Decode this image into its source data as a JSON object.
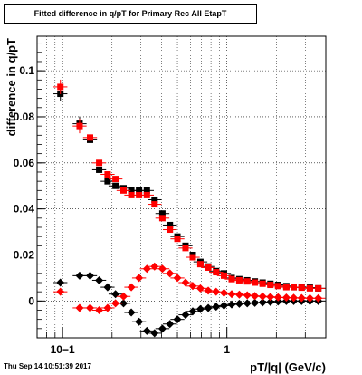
{
  "page": {
    "timestamp": "Thu Sep 14 10:51:39 2017"
  },
  "chart_data": {
    "type": "scatter",
    "title": "Fitted difference in q/pT for Primary Rec All EtapT",
    "xlabel": "pT/|q| (GeV/c)",
    "ylabel": "difference in q/pT",
    "xscale": "log",
    "xlim": [
      0.07,
      4.0
    ],
    "ylim": [
      -0.016,
      0.115
    ],
    "xticks": [
      {
        "value": 0.1,
        "label": "10−1"
      },
      {
        "value": 1,
        "label": "1"
      }
    ],
    "yticks": [
      {
        "value": 0,
        "label": "0"
      },
      {
        "value": 0.02,
        "label": "0.02"
      },
      {
        "value": 0.04,
        "label": "0.04"
      },
      {
        "value": 0.06,
        "label": "0.06"
      },
      {
        "value": 0.08,
        "label": "0.08"
      },
      {
        "value": 0.1,
        "label": "0.1"
      }
    ],
    "grid": true,
    "legend": "none",
    "series": [
      {
        "marker": "square",
        "color": "#000000",
        "xerr": true,
        "yerr": true,
        "x": [
          0.097,
          0.127,
          0.147,
          0.167,
          0.188,
          0.21,
          0.235,
          0.262,
          0.292,
          0.326,
          0.363,
          0.405,
          0.45,
          0.5,
          0.56,
          0.62,
          0.69,
          0.77,
          0.86,
          0.96,
          1.07,
          1.19,
          1.33,
          1.48,
          1.65,
          1.84,
          2.05,
          2.3,
          2.55,
          2.85,
          3.2,
          3.6
        ],
        "y": [
          0.09,
          0.077,
          0.07,
          0.057,
          0.052,
          0.05,
          0.049,
          0.048,
          0.048,
          0.048,
          0.044,
          0.038,
          0.033,
          0.028,
          0.024,
          0.02,
          0.017,
          0.015,
          0.013,
          0.012,
          0.01,
          0.0095,
          0.009,
          0.0085,
          0.008,
          0.0075,
          0.007,
          0.0065,
          0.006,
          0.006,
          0.0058,
          0.0055
        ]
      },
      {
        "marker": "square",
        "color": "#ff0000",
        "xerr": true,
        "yerr": true,
        "x": [
          0.097,
          0.127,
          0.147,
          0.167,
          0.188,
          0.21,
          0.235,
          0.262,
          0.292,
          0.326,
          0.363,
          0.405,
          0.45,
          0.5,
          0.56,
          0.62,
          0.69,
          0.77,
          0.86,
          0.96,
          1.07,
          1.19,
          1.33,
          1.48,
          1.65,
          1.84,
          2.05,
          2.3,
          2.55,
          2.85,
          3.2,
          3.6
        ],
        "y": [
          0.093,
          0.076,
          0.071,
          0.06,
          0.055,
          0.053,
          0.048,
          0.046,
          0.046,
          0.046,
          0.042,
          0.036,
          0.031,
          0.027,
          0.023,
          0.019,
          0.016,
          0.0145,
          0.0125,
          0.011,
          0.0095,
          0.009,
          0.0085,
          0.008,
          0.0075,
          0.007,
          0.0065,
          0.006,
          0.006,
          0.0058,
          0.0055,
          0.0055
        ]
      },
      {
        "marker": "diamond",
        "color": "#000000",
        "xerr": true,
        "yerr": false,
        "x": [
          0.097,
          0.127,
          0.147,
          0.167,
          0.188,
          0.21,
          0.235,
          0.262,
          0.292,
          0.326,
          0.363,
          0.405,
          0.45,
          0.5,
          0.56,
          0.62,
          0.69,
          0.77,
          0.86,
          0.96,
          1.07,
          1.19,
          1.33,
          1.48,
          1.65,
          1.84,
          2.05,
          2.3,
          2.55,
          2.85,
          3.2,
          3.6
        ],
        "y": [
          0.008,
          0.011,
          0.011,
          0.009,
          0.006,
          0.003,
          -0.001,
          -0.005,
          -0.009,
          -0.013,
          -0.014,
          -0.012,
          -0.01,
          -0.008,
          -0.006,
          -0.0045,
          -0.0035,
          -0.003,
          -0.0025,
          -0.002,
          -0.0015,
          -0.0012,
          -0.001,
          -0.0008,
          -0.0006,
          -0.0004,
          -0.0002,
          0.0,
          0.0,
          0.0,
          0.0,
          0.0
        ]
      },
      {
        "marker": "diamond",
        "color": "#ff0000",
        "xerr": true,
        "yerr": false,
        "x": [
          0.097,
          0.127,
          0.147,
          0.167,
          0.188,
          0.21,
          0.235,
          0.262,
          0.292,
          0.326,
          0.363,
          0.405,
          0.45,
          0.5,
          0.56,
          0.62,
          0.69,
          0.77,
          0.86,
          0.96,
          1.07,
          1.19,
          1.33,
          1.48,
          1.65,
          1.84,
          2.05,
          2.3,
          2.55,
          2.85,
          3.2,
          3.6
        ],
        "y": [
          0.004,
          -0.003,
          -0.003,
          -0.004,
          -0.003,
          -0.001,
          0.002,
          0.006,
          0.01,
          0.014,
          0.015,
          0.014,
          0.012,
          0.01,
          0.008,
          0.0065,
          0.0055,
          0.0045,
          0.004,
          0.0035,
          0.003,
          0.0028,
          0.0025,
          0.0022,
          0.002,
          0.0018,
          0.0016,
          0.0015,
          0.0014,
          0.0013,
          0.0012,
          0.0012
        ]
      }
    ]
  }
}
